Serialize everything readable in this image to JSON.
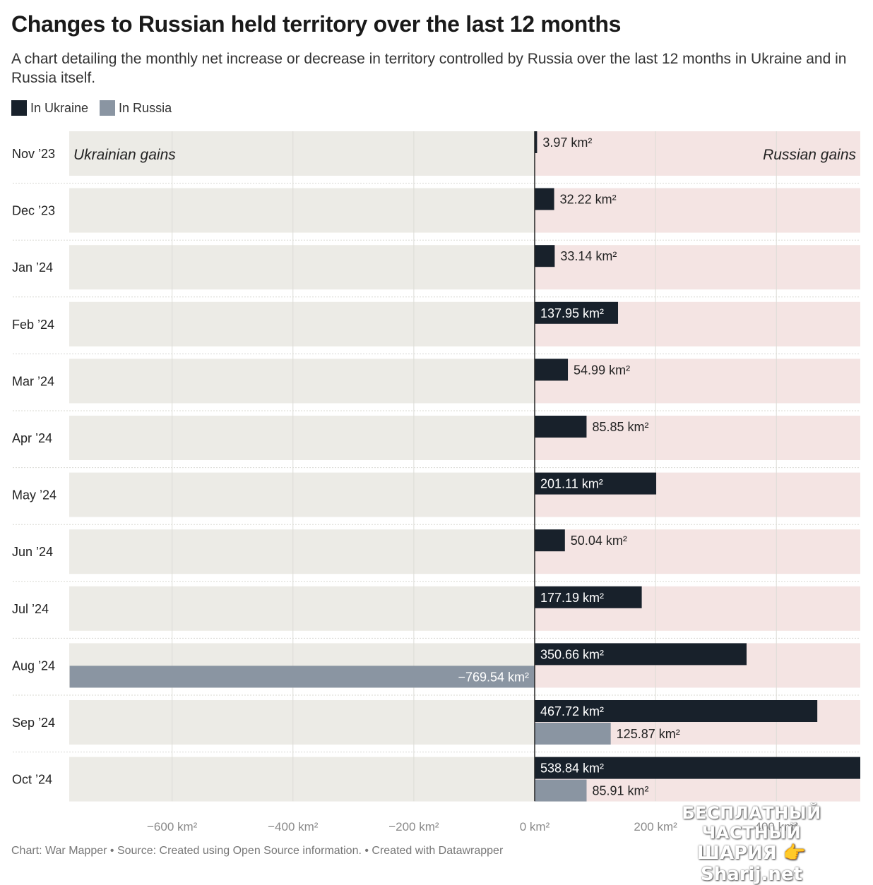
{
  "title": "Changes to Russian held territory over the last 12 months",
  "subtitle": "A chart detailing the monthly net increase or decrease in territory controlled by Russia over the last 12 months in Ukraine and in Russia itself.",
  "legend": [
    {
      "label": "In Ukraine",
      "color": "#18212b"
    },
    {
      "label": "In Russia",
      "color": "#8a95a2"
    }
  ],
  "footer": "Chart: War Mapper • Source: Created using Open Source information.  • Created with Datawrapper",
  "watermark": {
    "line1": "БЕСПЛАТНЫЙ ЧАСТНЫЙ",
    "line2": "ШАРИЯ 👉 Sharij.net"
  },
  "colors": {
    "left_bg": "#ecebe6",
    "right_bg": "#f4e4e3",
    "ukraine": "#18212b",
    "russia": "#8a95a2"
  },
  "chart_data": {
    "type": "bar",
    "orientation": "horizontal",
    "categories": [
      "Nov ’23",
      "Dec ’23",
      "Jan ’24",
      "Feb ’24",
      "Mar ’24",
      "Apr ’24",
      "May ’24",
      "Jun ’24",
      "Jul ’24",
      "Aug ’24",
      "Sep ’24",
      "Oct ’24"
    ],
    "series": [
      {
        "name": "In Ukraine",
        "values": [
          3.97,
          32.22,
          33.14,
          137.95,
          54.99,
          85.85,
          201.11,
          50.04,
          177.19,
          350.66,
          467.72,
          538.84
        ]
      },
      {
        "name": "In Russia",
        "values": [
          null,
          null,
          null,
          null,
          null,
          null,
          null,
          null,
          null,
          -769.54,
          125.87,
          85.91
        ]
      }
    ],
    "value_labels": {
      "In Ukraine": [
        "3.97 km²",
        "32.22 km²",
        "33.14 km²",
        "137.95 km²",
        "54.99 km²",
        "85.85 km²",
        "201.11 km²",
        "50.04 km²",
        "177.19 km²",
        "350.66 km²",
        "467.72 km²",
        "538.84 km²"
      ],
      "In Russia": [
        null,
        null,
        null,
        null,
        null,
        null,
        null,
        null,
        null,
        "−769.54 km²",
        "125.87 km²",
        "85.91 km²"
      ]
    },
    "xlim": [
      -769.54,
      538.84
    ],
    "xticks": [
      -600,
      -400,
      -200,
      0,
      200,
      400
    ],
    "xtick_labels": [
      "−600 km²",
      "−400 km²",
      "−200 km²",
      "0 km²",
      "200 km²",
      "400 km²"
    ],
    "region_labels": {
      "left": "Ukrainian gains",
      "right": "Russian gains"
    },
    "grid": true,
    "legend_position": "top-left"
  }
}
